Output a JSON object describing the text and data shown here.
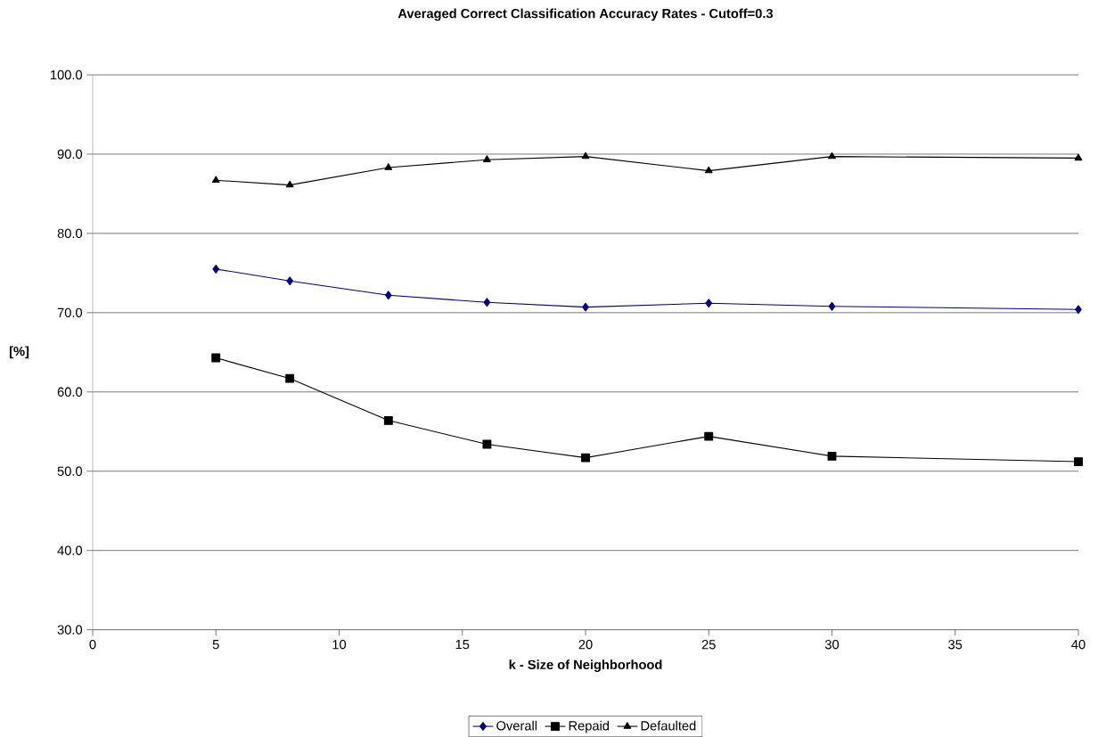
{
  "chart_data": {
    "type": "line",
    "title": "Averaged Correct Classification Accuracy Rates - Cutoff=0.3",
    "xlabel": "k - Size of Neighborhood",
    "ylabel": "[%]",
    "x": [
      5,
      8,
      12,
      16,
      20,
      25,
      30,
      40
    ],
    "series": [
      {
        "name": "Overall",
        "color": "#000080",
        "marker": "diamond",
        "values": [
          75.5,
          74.0,
          72.2,
          71.3,
          70.7,
          71.2,
          70.8,
          70.4
        ]
      },
      {
        "name": "Repaid",
        "color": "#000000",
        "marker": "square",
        "values": [
          64.3,
          61.7,
          56.4,
          53.4,
          51.7,
          54.4,
          51.9,
          51.2
        ]
      },
      {
        "name": "Defaulted",
        "color": "#000000",
        "marker": "triangle",
        "values": [
          86.7,
          86.1,
          88.3,
          89.3,
          89.7,
          87.9,
          89.7,
          89.5
        ]
      }
    ],
    "xlim": [
      0,
      40
    ],
    "xticks": [
      0,
      5,
      10,
      15,
      20,
      25,
      30,
      35,
      40
    ],
    "ylim": [
      30,
      100
    ],
    "yticks": [
      {
        "value": 30,
        "label": "30.0"
      },
      {
        "value": 40,
        "label": "40.0"
      },
      {
        "value": 50,
        "label": "50.0"
      },
      {
        "value": 60,
        "label": "60.0"
      },
      {
        "value": 70,
        "label": "70.0"
      },
      {
        "value": 80,
        "label": "80.0"
      },
      {
        "value": 90,
        "label": "90.0"
      },
      {
        "value": 100,
        "label": "100.0"
      }
    ],
    "grid": "y",
    "legend": "bottom",
    "line_style": "solid"
  }
}
